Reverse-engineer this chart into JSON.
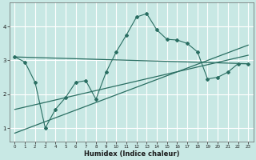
{
  "xlabel": "Humidex (Indice chaleur)",
  "background_color": "#c8e8e4",
  "grid_color": "#b0d8d4",
  "line_color": "#2a6e62",
  "xlim": [
    -0.5,
    23.5
  ],
  "ylim": [
    0.6,
    4.7
  ],
  "yticks": [
    1,
    2,
    3,
    4
  ],
  "xticks": [
    0,
    1,
    2,
    3,
    4,
    5,
    6,
    7,
    8,
    9,
    10,
    11,
    12,
    13,
    14,
    15,
    16,
    17,
    18,
    19,
    20,
    21,
    22,
    23
  ],
  "series1_x": [
    0,
    1,
    2,
    3,
    4,
    5,
    6,
    7,
    8,
    9,
    10,
    11,
    12,
    13,
    14,
    15,
    16,
    17,
    18,
    19,
    20,
    21,
    22,
    23
  ],
  "series1_y": [
    3.1,
    2.95,
    2.35,
    1.0,
    1.55,
    1.9,
    2.35,
    2.4,
    1.85,
    2.65,
    3.25,
    3.75,
    4.28,
    4.38,
    3.9,
    3.62,
    3.6,
    3.5,
    3.25,
    2.45,
    2.5,
    2.65,
    2.9,
    2.9
  ],
  "series2_x": [
    0,
    23
  ],
  "series2_y": [
    3.1,
    2.9
  ],
  "series3_x": [
    0,
    23
  ],
  "series3_y": [
    0.85,
    3.45
  ],
  "series4_x": [
    0,
    23
  ],
  "series4_y": [
    1.55,
    3.15
  ]
}
